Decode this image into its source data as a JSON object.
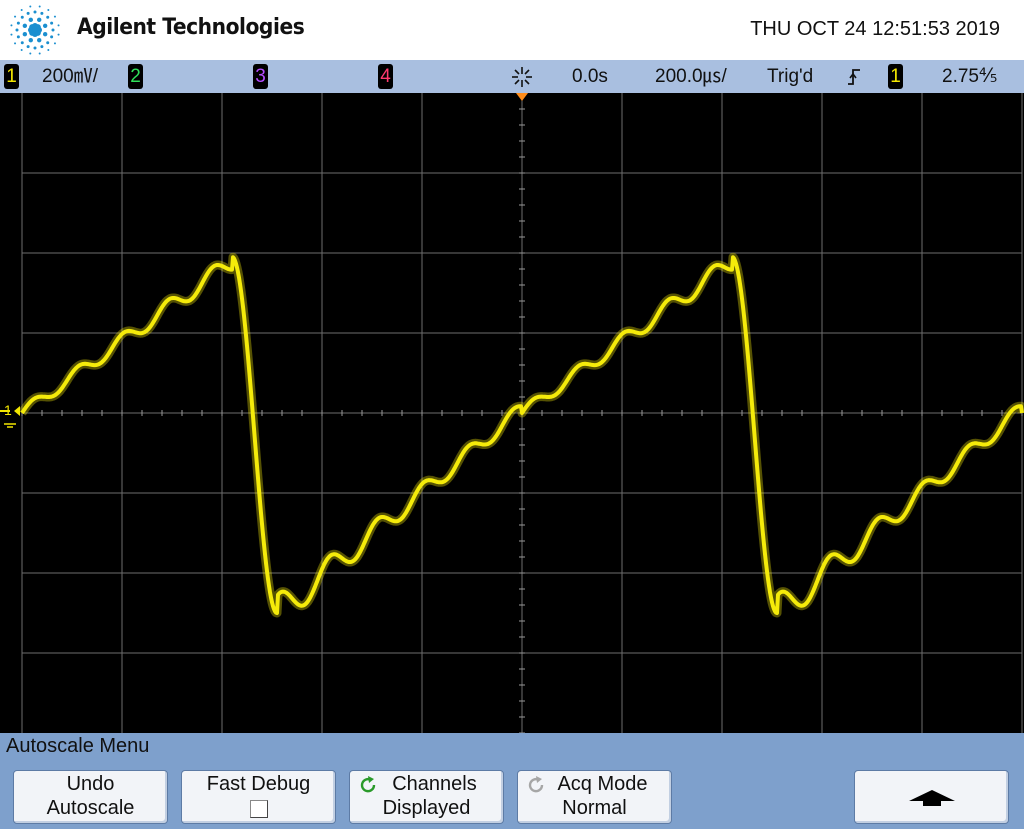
{
  "header": {
    "brand": "Agilent Technologies",
    "datetime": "THU OCT 24 12:51:53 2019"
  },
  "status": {
    "ch1": {
      "num": "1",
      "scale": "200㎷/",
      "color": "#f2e600"
    },
    "ch2": {
      "num": "2",
      "color": "#2fe05a"
    },
    "ch3": {
      "num": "3",
      "color": "#b44cff"
    },
    "ch4": {
      "num": "4",
      "color": "#ff3a6e"
    },
    "delay": "0.0s",
    "timebase": "200.0㎲/",
    "trigger_state": "Trig'd",
    "trigger_slope_icon": "rising-edge-icon",
    "trigger_source": "1",
    "trigger_level": "2.75⅘"
  },
  "screen": {
    "ground_marker": "1",
    "trace_color": "#f5eb0a"
  },
  "softkeys": {
    "menu_title": "Autoscale Menu",
    "undo": {
      "line1": "Undo",
      "line2": "Autoscale"
    },
    "fast_debug": {
      "line1": "Fast Debug"
    },
    "channels": {
      "line1": "Channels",
      "line2": "Displayed"
    },
    "acq_mode": {
      "line1": "Acq Mode",
      "line2": "Normal"
    },
    "back_icon": "up-arrow-icon"
  }
}
